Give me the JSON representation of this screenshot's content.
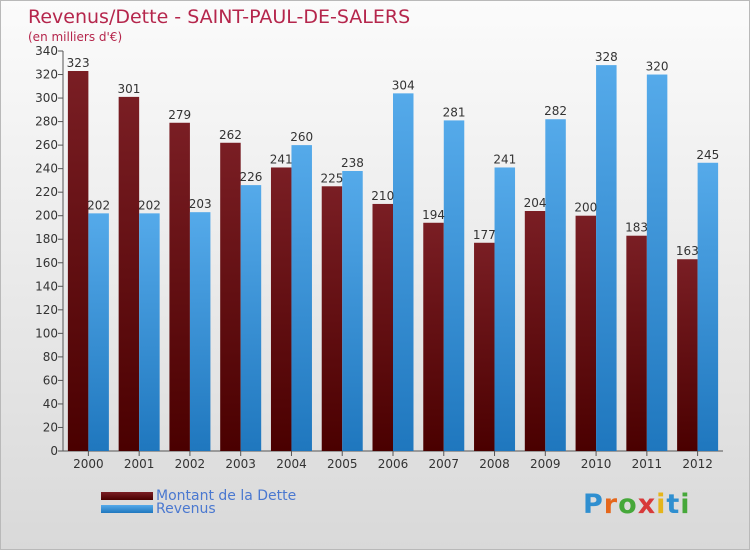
{
  "header": {
    "title": "Revenus/Dette - SAINT-PAUL-DE-SALERS",
    "subtitle": "(en milliers d'€)"
  },
  "legend": {
    "dette_label": "Montant de la Dette",
    "revenus_label": "Revenus"
  },
  "logo": {
    "text": "Proxiti"
  },
  "colors": {
    "dette": "#7a1e24",
    "dette_dark": "#4a0000",
    "revenus": "#55aaea",
    "revenus_dark": "#1f77be",
    "title": "#b5264c",
    "legend_text": "#4a78d0"
  },
  "chart_data": {
    "type": "bar",
    "title": "Revenus/Dette - SAINT-PAUL-DE-SALERS",
    "ylabel": "(en milliers d'€)",
    "categories": [
      "2000",
      "2001",
      "2002",
      "2003",
      "2004",
      "2005",
      "2006",
      "2007",
      "2008",
      "2009",
      "2010",
      "2011",
      "2012"
    ],
    "series": [
      {
        "name": "Montant de la Dette",
        "values": [
          323,
          301,
          279,
          262,
          241,
          225,
          210,
          194,
          177,
          204,
          200,
          183,
          163
        ]
      },
      {
        "name": "Revenus",
        "values": [
          202,
          202,
          203,
          226,
          260,
          238,
          304,
          281,
          241,
          282,
          328,
          320,
          245
        ]
      }
    ],
    "ylim": [
      0,
      340
    ],
    "ytick_step": 20,
    "grid": false,
    "legend_position": "bottom-left"
  }
}
